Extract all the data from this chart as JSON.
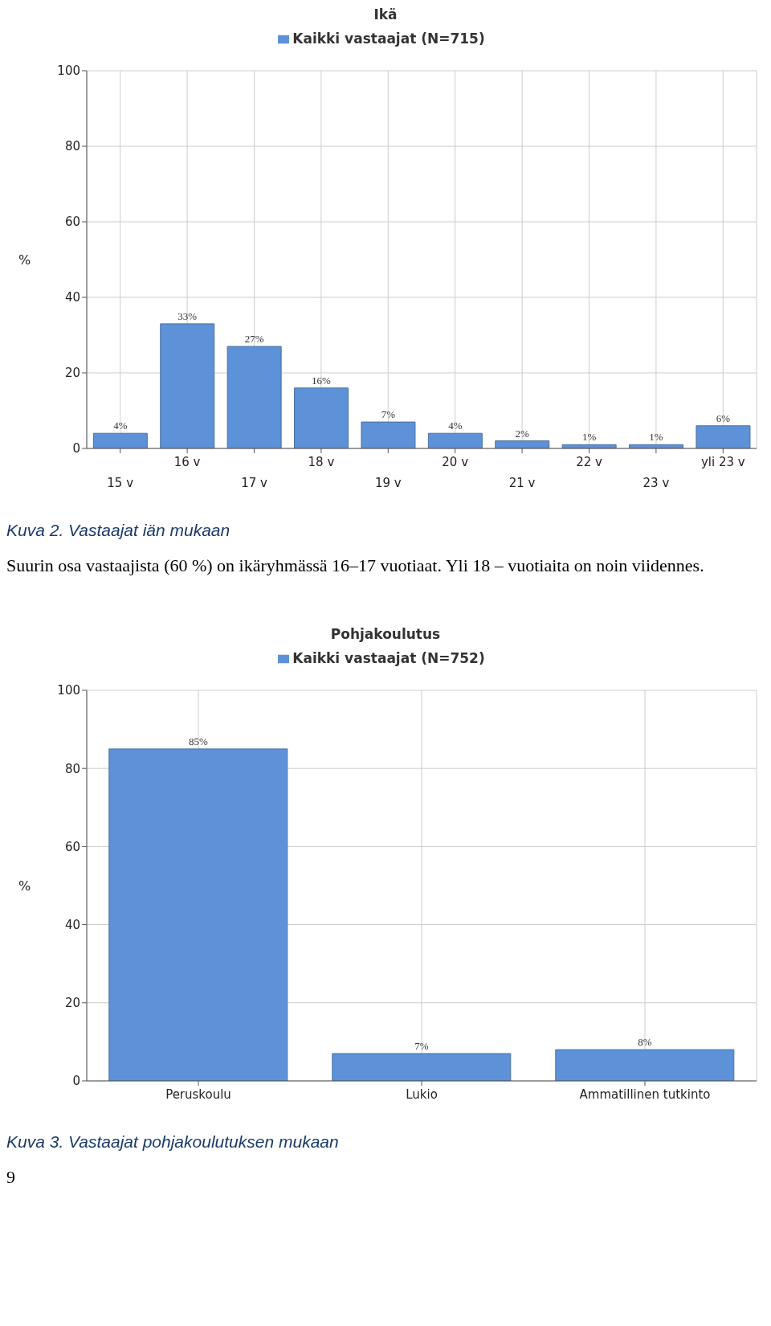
{
  "chart_data": [
    {
      "type": "bar",
      "title": "Ikä",
      "ylabel": "%",
      "legend": "top",
      "grid": true,
      "categories": [
        "15 v",
        "16 v",
        "17 v",
        "18 v",
        "19 v",
        "20 v",
        "21 v",
        "22 v",
        "23 v",
        "yli 23 v"
      ],
      "series": [
        {
          "name": "Kaikki vastaajat (N=715)",
          "color": "#5d92d8",
          "values": [
            4,
            33,
            27,
            16,
            7,
            4,
            2,
            1,
            1,
            6
          ],
          "value_labels": [
            "4%",
            "33%",
            "27%",
            "16%",
            "7%",
            "4%",
            "2%",
            "1%",
            "1%",
            "6%"
          ]
        }
      ],
      "ylim": [
        0,
        100
      ],
      "yticks": [
        0,
        20,
        40,
        60,
        80,
        100
      ],
      "annotations": [
        "Kuva 2. Vastaajat iän mukaan",
        "Suurin osa vastaajista (60 %) on ikäryhmässä 16–17 vuotiaat. Yli 18 – vuotiaita on noin viidennes."
      ]
    },
    {
      "type": "bar",
      "title": "Pohjakoulutus",
      "ylabel": "%",
      "legend": "top",
      "grid": true,
      "categories": [
        "Peruskoulu",
        "Lukio",
        "Ammatillinen tutkinto"
      ],
      "series": [
        {
          "name": "Kaikki vastaajat (N=752)",
          "color": "#5d92d8",
          "values": [
            85,
            7,
            8
          ],
          "value_labels": [
            "85%",
            "7%",
            "8%"
          ]
        }
      ],
      "ylim": [
        0,
        100
      ],
      "yticks": [
        0,
        20,
        40,
        60,
        80,
        100
      ],
      "annotations": [
        "Kuva 3. Vastaajat pohjakoulutuksen mukaan",
        "9"
      ]
    }
  ]
}
